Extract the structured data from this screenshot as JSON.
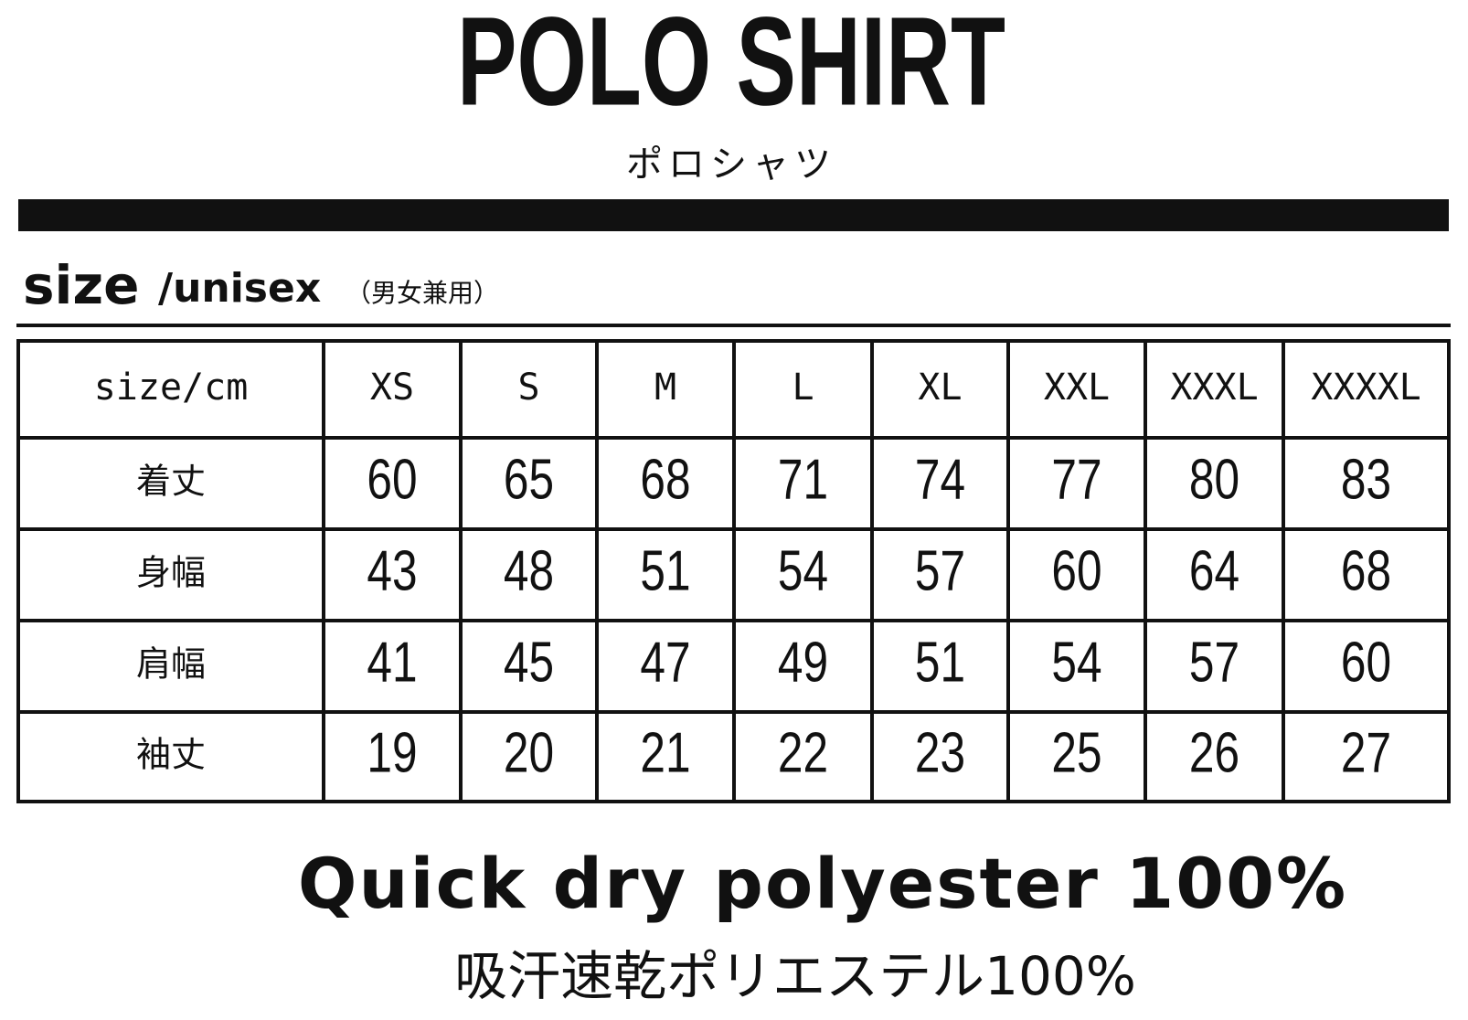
{
  "header": {
    "title": "POLO SHIRT",
    "subtitle": "ポロシャツ"
  },
  "section": {
    "label": "size",
    "fit": "/unisex",
    "fit_note": "（男女兼用）"
  },
  "table": {
    "columns": [
      "size/cm",
      "XS",
      "S",
      "M",
      "L",
      "XL",
      "XXL",
      "XXXL",
      "XXXXL"
    ],
    "rows": [
      [
        "着丈",
        60,
        65,
        68,
        71,
        74,
        77,
        80,
        83
      ],
      [
        "身幅",
        43,
        48,
        51,
        54,
        57,
        60,
        64,
        68
      ],
      [
        "肩幅",
        41,
        45,
        47,
        49,
        51,
        54,
        57,
        60
      ],
      [
        "袖丈",
        19,
        20,
        21,
        22,
        23,
        25,
        26,
        27
      ]
    ]
  },
  "footer": {
    "material": "Quick dry polyester 100%",
    "material_jp": "吸汗速乾ポリエステル100%"
  }
}
